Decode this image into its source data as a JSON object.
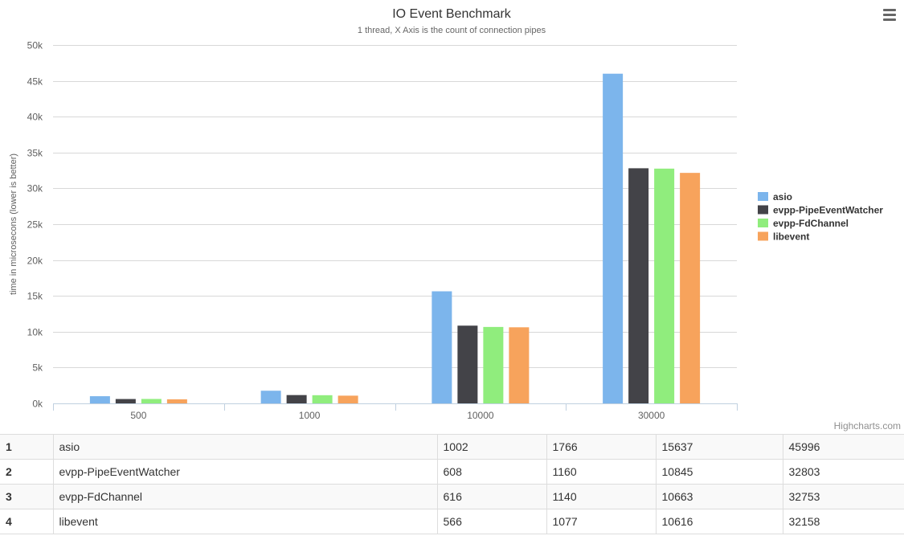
{
  "chart_data": {
    "type": "bar",
    "title": "IO Event Benchmark",
    "subtitle": "1 thread, X Axis is the count of connection pipes",
    "xlabel": "",
    "ylabel": "time in microsecons (lower is better)",
    "categories": [
      "500",
      "1000",
      "10000",
      "30000"
    ],
    "ylim": [
      0,
      50000
    ],
    "yticks": [
      0,
      5000,
      10000,
      15000,
      20000,
      25000,
      30000,
      35000,
      40000,
      45000,
      50000
    ],
    "ytick_labels": [
      "0k",
      "5k",
      "10k",
      "15k",
      "20k",
      "25k",
      "30k",
      "35k",
      "40k",
      "45k",
      "50k"
    ],
    "grid": true,
    "legend_position": "right",
    "series": [
      {
        "name": "asio",
        "color": "#7cb5ec",
        "values": [
          1002,
          1766,
          15637,
          45996
        ]
      },
      {
        "name": "evpp-PipeEventWatcher",
        "color": "#434348",
        "values": [
          608,
          1160,
          10845,
          32803
        ]
      },
      {
        "name": "evpp-FdChannel",
        "color": "#90ed7d",
        "values": [
          616,
          1140,
          10663,
          32753
        ]
      },
      {
        "name": "libevent",
        "color": "#f7a35c",
        "values": [
          566,
          1077,
          10616,
          32158
        ]
      }
    ]
  },
  "credits": "Highcharts.com",
  "menu_icon": "hamburger-menu-icon",
  "table": {
    "rows": [
      {
        "index": "1",
        "name": "asio",
        "values": [
          "1002",
          "1766",
          "15637",
          "45996"
        ]
      },
      {
        "index": "2",
        "name": "evpp-PipeEventWatcher",
        "values": [
          "608",
          "1160",
          "10845",
          "32803"
        ]
      },
      {
        "index": "3",
        "name": "evpp-FdChannel",
        "values": [
          "616",
          "1140",
          "10663",
          "32753"
        ]
      },
      {
        "index": "4",
        "name": "libevent",
        "values": [
          "566",
          "1077",
          "10616",
          "32158"
        ]
      }
    ]
  }
}
